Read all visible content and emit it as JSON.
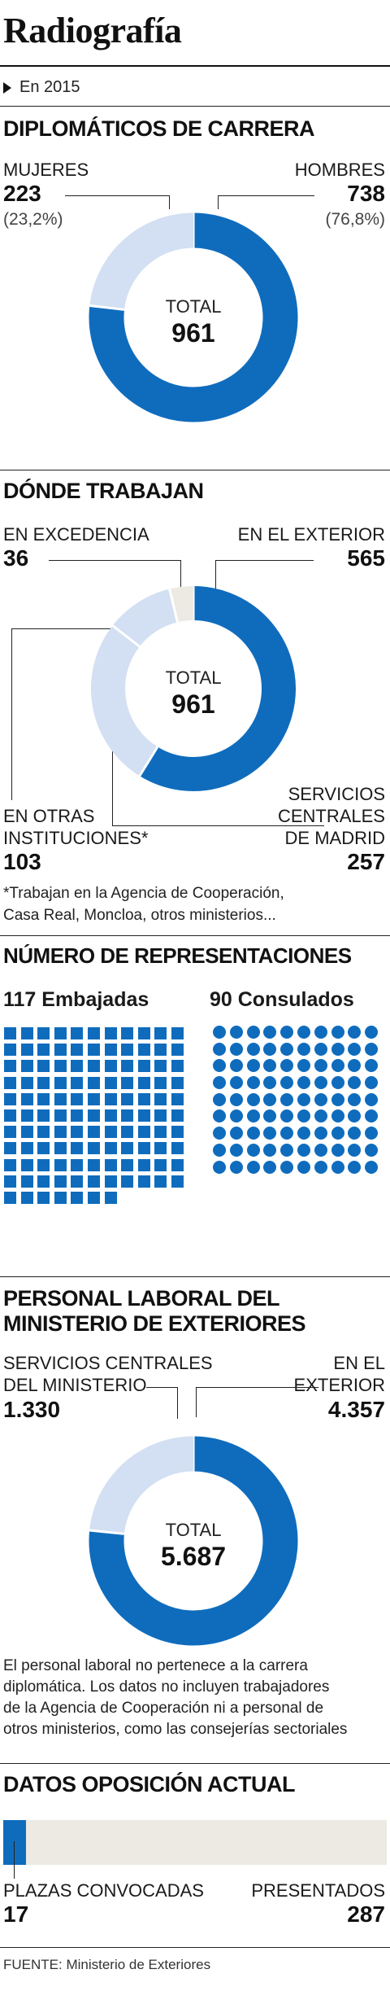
{
  "title": "Radiografía",
  "subtitle": "En 2015",
  "colors": {
    "dark": "#0f6cbd",
    "light": "#d3dff2",
    "pale": "#eceae2",
    "text": "#111111"
  },
  "sections": {
    "carrera": {
      "heading": "DIPLOMÁTICOS DE CARRERA",
      "center_label": "TOTAL",
      "center_value": "961",
      "mujeres": {
        "label": "MUJERES",
        "value": "223",
        "pct": "(23,2%)"
      },
      "hombres": {
        "label": "HOMBRES",
        "value": "738",
        "pct": "(76,8%)"
      }
    },
    "trabajan": {
      "heading": "DÓNDE TRABAJAN",
      "center_label": "TOTAL",
      "center_value": "961",
      "excedencia": {
        "label": "EN EXCEDENCIA",
        "value": "36"
      },
      "exterior": {
        "label": "EN EL EXTERIOR",
        "value": "565"
      },
      "otras": {
        "label_1": "EN OTRAS",
        "label_2": "INSTITUCIONES*",
        "value": "103"
      },
      "servicios": {
        "label_1": "SERVICIOS",
        "label_2": "CENTRALES",
        "label_3": "DE MADRID",
        "value": "257"
      },
      "footnote_1": "*Trabajan en la Agencia de Cooperación,",
      "footnote_2": "Casa Real, Moncloa, otros ministerios..."
    },
    "representaciones": {
      "heading": "NÚMERO DE REPRESENTACIONES",
      "embajadas_label": "117 Embajadas",
      "consulados_label": "90 Consulados"
    },
    "laboral": {
      "heading_1": "PERSONAL LABORAL DEL",
      "heading_2": "MINISTERIO DE EXTERIORES",
      "center_label": "TOTAL",
      "center_value": "5.687",
      "servicios": {
        "label_1": "SERVICIOS CENTRALES",
        "label_2": "DEL MINISTERIO",
        "value": "1.330"
      },
      "exterior": {
        "label_1": "EN EL",
        "label_2": "EXTERIOR",
        "value": "4.357"
      },
      "note_1": "El personal laboral no pertenece a la carrera",
      "note_2": "diplomática. Los datos no incluyen trabajadores",
      "note_3": "de la Agencia de Cooperación ni a personal de",
      "note_4": "otros ministerios, como las consejerías sectoriales"
    },
    "oposicion": {
      "heading": "DATOS OPOSICIÓN ACTUAL",
      "plazas": {
        "label": "PLAZAS CONVOCADAS",
        "value": "17"
      },
      "presentados": {
        "label": "PRESENTADOS",
        "value": "287"
      }
    }
  },
  "source": "FUENTE: Ministerio de Exteriores",
  "chart_data": [
    {
      "type": "pie",
      "title": "DIPLOMÁTICOS DE CARRERA",
      "categories": [
        "HOMBRES",
        "MUJERES"
      ],
      "values": [
        738,
        223
      ],
      "percent": [
        76.8,
        23.2
      ],
      "total": 961
    },
    {
      "type": "pie",
      "title": "DÓNDE TRABAJAN",
      "categories": [
        "EN EL EXTERIOR",
        "SERVICIOS CENTRALES DE MADRID",
        "EN OTRAS INSTITUCIONES*",
        "EN EXCEDENCIA"
      ],
      "values": [
        565,
        257,
        103,
        36
      ],
      "total": 961
    },
    {
      "type": "bar",
      "title": "NÚMERO DE REPRESENTACIONES",
      "categories": [
        "Embajadas",
        "Consulados"
      ],
      "values": [
        117,
        90
      ]
    },
    {
      "type": "pie",
      "title": "PERSONAL LABORAL DEL MINISTERIO DE EXTERIORES",
      "categories": [
        "EN EL EXTERIOR",
        "SERVICIOS CENTRALES DEL MINISTERIO"
      ],
      "values": [
        4357,
        1330
      ],
      "total": 5687
    },
    {
      "type": "bar",
      "title": "DATOS OPOSICIÓN ACTUAL",
      "categories": [
        "PLAZAS CONVOCADAS",
        "PRESENTADOS"
      ],
      "values": [
        17,
        287
      ]
    }
  ]
}
